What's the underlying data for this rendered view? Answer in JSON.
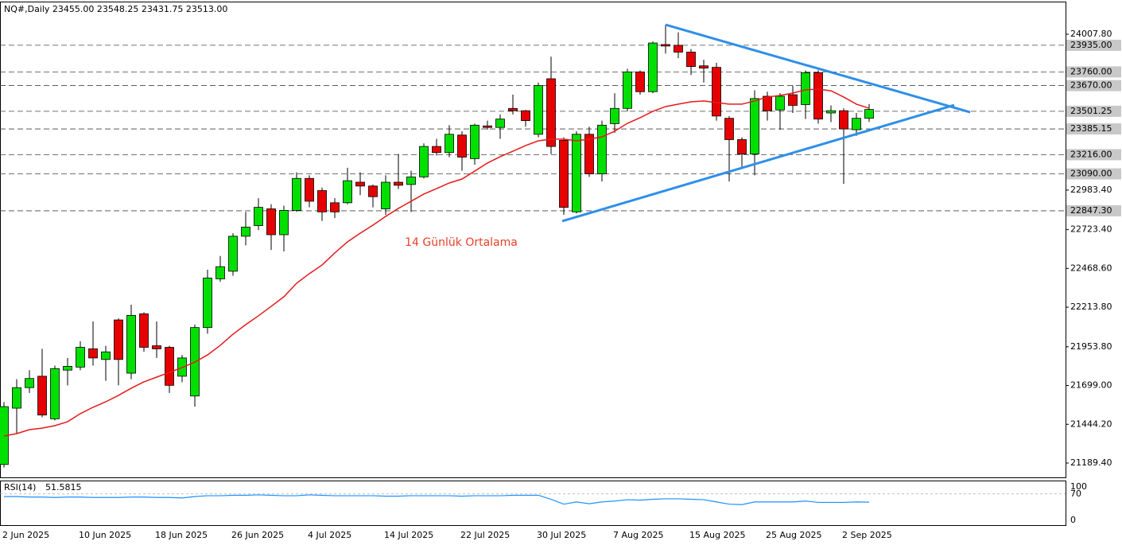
{
  "chart_data": [
    {
      "type": "candlestick",
      "title": "NQ#,Daily  23455.00 23548.25 23431.75 23513.00",
      "categories": [
        "2 Jun 2025",
        null,
        null,
        null,
        null,
        null,
        "10 Jun 2025",
        null,
        null,
        null,
        null,
        null,
        "18 Jun 2025",
        null,
        null,
        null,
        null,
        null,
        "26 Jun 2025",
        null,
        null,
        null,
        null,
        null,
        "4 Jul 2025",
        null,
        null,
        null,
        null,
        null,
        "14 Jul 2025",
        null,
        null,
        null,
        null,
        null,
        "22 Jul 2025",
        null,
        null,
        null,
        null,
        null,
        "30 Jul 2025",
        null,
        null,
        null,
        null,
        null,
        "7 Aug 2025",
        null,
        null,
        null,
        null,
        null,
        "15 Aug 2025",
        null,
        null,
        null,
        null,
        null,
        "25 Aug 2025",
        null,
        null,
        null,
        null,
        null,
        "2 Sep 2025",
        null,
        null
      ],
      "open": [
        21180,
        21550,
        21685,
        21760,
        21480,
        21800,
        21820,
        21940,
        21870,
        22130,
        21780,
        22170,
        21960,
        21950,
        21760,
        21630,
        22080,
        22400,
        22450,
        22680,
        22750,
        22860,
        22690,
        22850,
        23060,
        22980,
        22900,
        22900,
        23035,
        23010,
        22860,
        23035,
        23020,
        23070,
        23270,
        23230,
        23345,
        23190,
        23405,
        23395,
        23520,
        23505,
        23350,
        23715,
        23310,
        22840,
        23350,
        23090,
        23420,
        23520,
        23760,
        23630,
        23940,
        23935,
        23890,
        23800,
        23790,
        23455,
        23315,
        23220,
        23600,
        23510,
        23610,
        23545,
        23755,
        23490,
        23505,
        23380,
        23455
      ],
      "high": [
        21590,
        21740,
        21800,
        21940,
        21830,
        21880,
        21990,
        22120,
        21960,
        22140,
        22230,
        22180,
        22120,
        21960,
        21900,
        22100,
        22460,
        22550,
        22700,
        22840,
        22930,
        22890,
        22880,
        23100,
        23080,
        23000,
        22930,
        23130,
        23100,
        23020,
        23080,
        23220,
        23110,
        23290,
        23320,
        23410,
        23370,
        23420,
        23440,
        23480,
        23610,
        23510,
        23690,
        23860,
        23330,
        23370,
        23400,
        23440,
        23620,
        23780,
        23770,
        23960,
        24070,
        24020,
        23910,
        23840,
        23820,
        23470,
        23330,
        23640,
        23630,
        23620,
        23670,
        23770,
        23770,
        23540,
        23520,
        23490,
        23548.25
      ],
      "low": [
        21160,
        21380,
        21650,
        21490,
        21470,
        21700,
        21800,
        21830,
        21730,
        21700,
        21740,
        21920,
        21880,
        21650,
        21720,
        21560,
        22040,
        22380,
        22420,
        22620,
        22720,
        22590,
        22580,
        22840,
        22870,
        22780,
        22800,
        22890,
        22950,
        22870,
        22820,
        22990,
        22840,
        23060,
        23210,
        23200,
        23110,
        23150,
        23380,
        23320,
        23480,
        23400,
        23330,
        23220,
        22820,
        22830,
        23070,
        23040,
        23360,
        23500,
        23610,
        23620,
        23880,
        23850,
        23740,
        23690,
        23440,
        23040,
        23130,
        23080,
        23440,
        23380,
        23490,
        23450,
        23420,
        23430,
        23025,
        23340,
        23431.75
      ],
      "close": [
        21560,
        21685,
        21745,
        21505,
        21810,
        21825,
        21950,
        21880,
        21920,
        21870,
        22160,
        21950,
        21940,
        21700,
        21880,
        22080,
        22405,
        22480,
        22680,
        22740,
        22870,
        22690,
        22850,
        23060,
        22910,
        22840,
        22840,
        23045,
        23010,
        22940,
        23035,
        23015,
        23070,
        23270,
        23230,
        23350,
        23200,
        23410,
        23395,
        23450,
        23505,
        23440,
        23670,
        23270,
        22870,
        23350,
        23090,
        23410,
        23520,
        23760,
        23630,
        23950,
        23930,
        23890,
        23795,
        23785,
        23470,
        23315,
        23220,
        23585,
        23505,
        23600,
        23540,
        23755,
        23450,
        23505,
        23385,
        23455,
        23513
      ],
      "up_color": "#00e000",
      "down_color": "#e60000",
      "ylim": [
        21095.2,
        24222.1
      ],
      "yticks": [
        {
          "value": 24007.8,
          "label": "24007.80"
        },
        {
          "value": 22983.4,
          "label": "22983.40"
        },
        {
          "value": 22723.4,
          "label": "22723.40"
        },
        {
          "value": 22468.6,
          "label": "22468.60"
        },
        {
          "value": 22213.8,
          "label": "22213.80"
        },
        {
          "value": 21953.8,
          "label": "21953.80"
        },
        {
          "value": 21699,
          "label": "21699.00"
        },
        {
          "value": 21444.2,
          "label": "21444.20"
        },
        {
          "value": 21189.4,
          "label": "21189.40"
        }
      ],
      "levels": [
        {
          "value": 23935,
          "label": "23935.00"
        },
        {
          "value": 23760,
          "label": "23760.00"
        },
        {
          "value": 23670,
          "label": "23670.00"
        },
        {
          "value": 23501.25,
          "label": "23501.25"
        },
        {
          "value": 23385.15,
          "label": "23385.15"
        },
        {
          "value": 23216,
          "label": "23216.00"
        },
        {
          "value": 23090,
          "label": "23090.00"
        },
        {
          "value": 22847.3,
          "label": "22847.30"
        }
      ],
      "annotation": "14 Günlük Ortalama",
      "ma_color": "#e41a1c",
      "ma_values": [
        21367,
        21383,
        21409,
        21419,
        21435,
        21461,
        21514,
        21556,
        21592,
        21634,
        21681,
        21723,
        21754,
        21785,
        21817,
        21853,
        21900,
        21963,
        22036,
        22099,
        22157,
        22219,
        22282,
        22371,
        22434,
        22491,
        22570,
        22643,
        22700,
        22753,
        22810,
        22863,
        22910,
        22957,
        22993,
        23030,
        23056,
        23108,
        23161,
        23203,
        23239,
        23276,
        23307,
        23318,
        23318,
        23307,
        23318,
        23333,
        23370,
        23422,
        23459,
        23501,
        23532,
        23548,
        23563,
        23569,
        23558,
        23548,
        23548,
        23569,
        23595,
        23605,
        23621,
        23642,
        23647,
        23636,
        23595,
        23548,
        23521
      ],
      "trendline_color": "#2f8fe8",
      "trendlines": [
        {
          "x": [
            52,
            75.94
          ],
          "y": [
            24070,
            23495
          ]
        },
        {
          "x": [
            43.875,
            74.69
          ],
          "y": [
            22779,
            23542
          ]
        }
      ]
    },
    {
      "type": "line",
      "title": "RSI(14)",
      "series": [
        {
          "color": "#1e90ff",
          "values": [
            64,
            64,
            63,
            63,
            62,
            63,
            63,
            62,
            62,
            62,
            63,
            63,
            62,
            62,
            61,
            64,
            66,
            66,
            67,
            67,
            68,
            67,
            66,
            66,
            68,
            67,
            66,
            66,
            66,
            66,
            65,
            65,
            66,
            66,
            66,
            66,
            65,
            66,
            66,
            66,
            67,
            67,
            67,
            58,
            47,
            52,
            48,
            52,
            54,
            57,
            56,
            58,
            59,
            59,
            58,
            57,
            52,
            47,
            46,
            52,
            52,
            52,
            52,
            54,
            51,
            51,
            51,
            52,
            51.5815
          ]
        }
      ],
      "ylim": [
        0,
        100
      ],
      "yticks": [
        100,
        70,
        0
      ]
    }
  ]
}
